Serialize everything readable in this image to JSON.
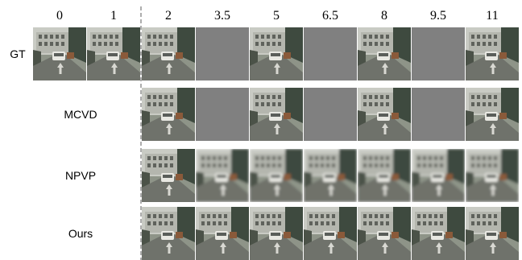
{
  "columns": [
    "0",
    "1",
    "2",
    "3.5",
    "5",
    "6.5",
    "8",
    "9.5",
    "11"
  ],
  "rows": [
    {
      "label": "GT"
    },
    {
      "label": "MCVD"
    },
    {
      "label": "NPVP"
    },
    {
      "label": "Ours"
    }
  ]
}
